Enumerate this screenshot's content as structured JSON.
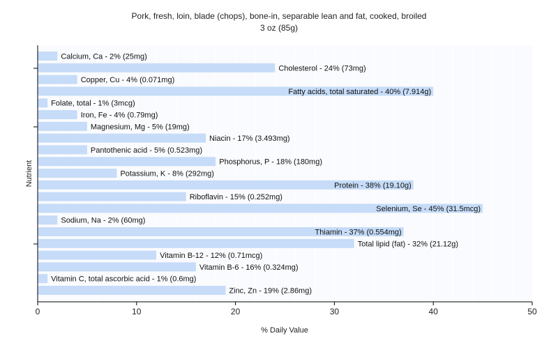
{
  "chart_data": {
    "type": "bar",
    "orientation": "horizontal",
    "title": "Pork, fresh, loin, blade (chops), bone-in, separable lean and fat, cooked, broiled",
    "subtitle": "3 oz (85g)",
    "xlabel": "% Daily Value",
    "ylabel": "Nutrient",
    "xlim": [
      0,
      50
    ],
    "xticks": [
      0,
      10,
      20,
      30,
      40,
      50
    ],
    "grid": true,
    "legend": "none",
    "colors": {
      "bar": "#c6dcf8",
      "plot_background": "#fafbfe",
      "grid": "#ffffff",
      "axis": "#000000"
    },
    "categories": [
      "Calcium, Ca",
      "Cholesterol",
      "Copper, Cu",
      "Fatty acids, total saturated",
      "Folate, total",
      "Iron, Fe",
      "Magnesium, Mg",
      "Niacin",
      "Pantothenic acid",
      "Phosphorus, P",
      "Potassium, K",
      "Protein",
      "Riboflavin",
      "Selenium, Se",
      "Sodium, Na",
      "Thiamin",
      "Total lipid (fat)",
      "Vitamin B-12",
      "Vitamin B-6",
      "Vitamin C, total ascorbic acid",
      "Zinc, Zn"
    ],
    "values": [
      2,
      24,
      4,
      40,
      1,
      4,
      5,
      17,
      5,
      18,
      8,
      38,
      15,
      45,
      2,
      37,
      32,
      12,
      16,
      1,
      19
    ],
    "labels": [
      "Calcium, Ca - 2% (25mg)",
      "Cholesterol - 24% (73mg)",
      "Copper, Cu - 4% (0.071mg)",
      "Fatty acids, total saturated - 40% (7.914g)",
      "Folate, total - 1% (3mcg)",
      "Iron, Fe - 4% (0.79mg)",
      "Magnesium, Mg - 5% (19mg)",
      "Niacin - 17% (3.493mg)",
      "Pantothenic acid - 5% (0.523mg)",
      "Phosphorus, P - 18% (180mg)",
      "Potassium, K - 8% (292mg)",
      "Protein - 38% (19.10g)",
      "Riboflavin - 15% (0.252mg)",
      "Selenium, Se - 45% (31.5mcg)",
      "Sodium, Na - 2% (60mg)",
      "Thiamin - 37% (0.554mg)",
      "Total lipid (fat) - 32% (21.12g)",
      "Vitamin B-12 - 12% (0.71mcg)",
      "Vitamin B-6 - 16% (0.324mg)",
      "Vitamin C, total ascorbic acid - 1% (0.6mg)",
      "Zinc, Zn - 19% (2.86mg)"
    ]
  }
}
